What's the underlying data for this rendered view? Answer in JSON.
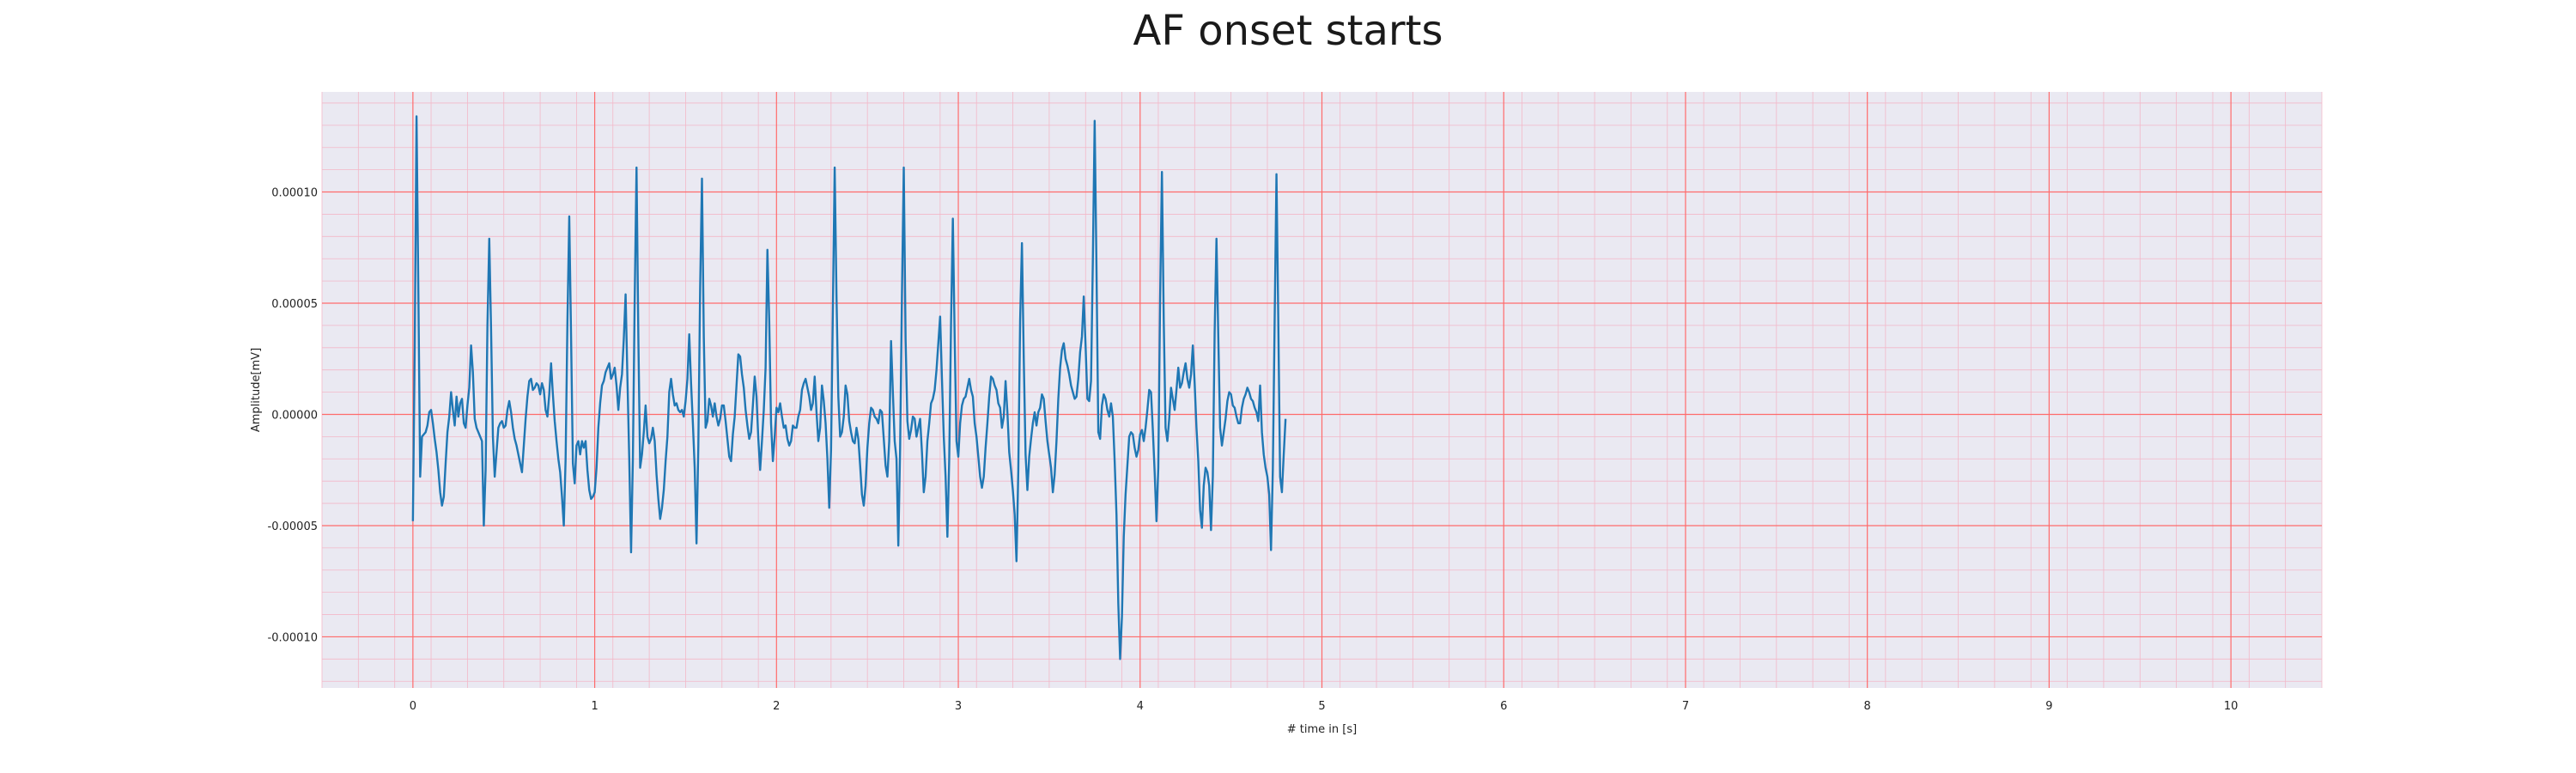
{
  "colors": {
    "background": "#ffffff",
    "plot_background": "#eae9f2",
    "major_grid": "#ff6b6b",
    "minor_grid": "#f3b8c8",
    "line": "#1f77b4",
    "text": "#222222"
  },
  "chart_data": {
    "type": "line",
    "title": "AF onset starts",
    "xlabel": "# time in [s]",
    "ylabel": "Amplitude[mV]",
    "xlim": [
      -0.5,
      10.5
    ],
    "ylim": [
      -0.000123,
      0.000145
    ],
    "x_ticks": [
      0,
      1,
      2,
      3,
      4,
      5,
      6,
      7,
      8,
      9,
      10
    ],
    "x_tick_labels": [
      "0",
      "1",
      "2",
      "3",
      "4",
      "5",
      "6",
      "7",
      "8",
      "9",
      "10"
    ],
    "y_ticks": [
      0.0001,
      5e-05,
      0.0,
      -5e-05,
      -0.0001
    ],
    "y_tick_labels": [
      "0.00010",
      "0.00005",
      "0.00000",
      "-0.00005",
      "-0.00010"
    ],
    "grid": true,
    "minor_grid": true,
    "series": [
      {
        "x_start": 0,
        "x_step": 0.01,
        "values": [
          -4.8e-05,
          3e-05,
          0.000134,
          5.5e-05,
          -2.8e-05,
          -1e-05,
          -9e-06,
          -8e-06,
          -5e-06,
          1e-06,
          2e-06,
          -4e-06,
          -1.1e-05,
          -1.7e-05,
          -2.5e-05,
          -3.5e-05,
          -4.1e-05,
          -3.7e-05,
          -2.2e-05,
          -8e-06,
          -1e-06,
          1e-05,
          2e-06,
          -5e-06,
          8e-06,
          -1e-06,
          5e-06,
          7e-06,
          -4e-06,
          -6e-06,
          4e-06,
          1.2e-05,
          3.1e-05,
          1.9e-05,
          -2e-06,
          -6e-06,
          -8e-06,
          -1e-05,
          -1.2e-05,
          -5e-05,
          -2.5e-05,
          4e-05,
          7.9e-05,
          3.8e-05,
          -1e-05,
          -2.8e-05,
          -1.7e-05,
          -6e-06,
          -4e-06,
          -3e-06,
          -6e-06,
          -5e-06,
          2e-06,
          6e-06,
          1e-06,
          -6e-06,
          -1.1e-05,
          -1.4e-05,
          -1.8e-05,
          -2.2e-05,
          -2.6e-05,
          -1.4e-05,
          -2e-06,
          8e-06,
          1.5e-05,
          1.6e-05,
          1.1e-05,
          1.2e-05,
          1.4e-05,
          1.3e-05,
          9e-06,
          1.4e-05,
          1.1e-05,
          2e-06,
          -1e-06,
          9e-06,
          2.3e-05,
          9e-06,
          -3e-06,
          -1.2e-05,
          -2e-05,
          -2.6e-05,
          -3.7e-05,
          -5e-05,
          -2e-05,
          4.2e-05,
          8.9e-05,
          3.5e-05,
          -2.2e-05,
          -3.1e-05,
          -1.4e-05,
          -1.2e-05,
          -1.8e-05,
          -1.2e-05,
          -1.5e-05,
          -1.2e-05,
          -2.5e-05,
          -3.4e-05,
          -3.8e-05,
          -3.7e-05,
          -3.5e-05,
          -2.4e-05,
          -6e-06,
          5e-06,
          1.3e-05,
          1.5e-05,
          1.9e-05,
          2.1e-05,
          2.3e-05,
          1.6e-05,
          1.8e-05,
          2.1e-05,
          1.3e-05,
          2e-06,
          1.2e-05,
          1.8e-05,
          3.4e-05,
          5.4e-05,
          1.6e-05,
          -2e-05,
          -6.2e-05,
          -2e-05,
          5.2e-05,
          0.000111,
          3.5e-05,
          -2.4e-05,
          -1.8e-05,
          -8e-06,
          4e-06,
          -1e-05,
          -1.3e-05,
          -1.1e-05,
          -6e-06,
          -1.2e-05,
          -2.7e-05,
          -3.8e-05,
          -4.7e-05,
          -4.2e-05,
          -3.4e-05,
          -2.1e-05,
          -1e-05,
          1e-05,
          1.6e-05,
          9e-06,
          4e-06,
          5e-06,
          2e-06,
          1e-06,
          2e-06,
          -1e-06,
          6e-06,
          1.6e-05,
          3.6e-05,
          1.4e-05,
          -4e-06,
          -2.4e-05,
          -5.8e-05,
          -1.4e-05,
          5.7e-05,
          0.000106,
          3.5e-05,
          -6e-06,
          -3e-06,
          7e-06,
          4e-06,
          -1e-06,
          5e-06,
          -1e-06,
          -5e-06,
          -2e-06,
          4e-06,
          4e-06,
          -3e-06,
          -1.1e-05,
          -1.9e-05,
          -2.1e-05,
          -9e-06,
          -1e-06,
          1.3e-05,
          2.7e-05,
          2.6e-05,
          1.8e-05,
          1.2e-05,
          2e-06,
          -5e-06,
          -1.1e-05,
          -8e-06,
          4e-06,
          1.7e-05,
          8e-06,
          -1.1e-05,
          -2.5e-05,
          -1.2e-05,
          2e-06,
          2.1e-05,
          7.4e-05,
          4.2e-05,
          -4e-06,
          -2.1e-05,
          -1e-05,
          3e-06,
          1e-06,
          5e-06,
          -1e-06,
          -6e-06,
          -5e-06,
          -1.1e-05,
          -1.4e-05,
          -1.2e-05,
          -5e-06,
          -6e-06,
          -6e-06,
          -1e-06,
          2e-06,
          1.1e-05,
          1.4e-05,
          1.6e-05,
          1.2e-05,
          8e-06,
          2e-06,
          5e-06,
          1.7e-05,
          1e-06,
          -1.2e-05,
          -6e-06,
          1.3e-05,
          6e-06,
          -4e-06,
          -2e-05,
          -4.2e-05,
          -1.6e-05,
          4.7e-05,
          0.000111,
          5.3e-05,
          8e-06,
          -1e-05,
          -8e-06,
          -1e-06,
          1.3e-05,
          9e-06,
          -3e-06,
          -8e-06,
          -1.2e-05,
          -1.3e-05,
          -6e-06,
          -1.1e-05,
          -2.3e-05,
          -3.6e-05,
          -4.1e-05,
          -3.2e-05,
          -1.5e-05,
          -4e-06,
          3e-06,
          2e-06,
          -1e-06,
          -2e-06,
          -4e-06,
          2e-06,
          1e-06,
          -1.1e-05,
          -2.3e-05,
          -2.8e-05,
          -1.2e-05,
          3.3e-05,
          1e-05,
          -1.2e-05,
          -2e-05,
          -5.9e-05,
          -1.5e-05,
          5.4e-05,
          0.000111,
          3.4e-05,
          -3e-06,
          -1.1e-05,
          -7e-06,
          -1e-06,
          -2e-06,
          -1e-05,
          -6e-06,
          -2e-06,
          -1.7e-05,
          -3.5e-05,
          -2.8e-05,
          -1.2e-05,
          -4e-06,
          5e-06,
          7e-06,
          1.1e-05,
          2e-05,
          3.2e-05,
          4.4e-05,
          1.6e-05,
          -1e-05,
          -2.8e-05,
          -5.5e-05,
          -2e-05,
          4.1e-05,
          8.8e-05,
          3.4e-05,
          -1.2e-05,
          -1.9e-05,
          -4e-06,
          4e-06,
          7e-06,
          8e-06,
          1.2e-05,
          1.6e-05,
          1.1e-05,
          8e-06,
          -4e-06,
          -1e-05,
          -1.9e-05,
          -2.8e-05,
          -3.3e-05,
          -2.8e-05,
          -1.5e-05,
          -4e-06,
          8e-06,
          1.7e-05,
          1.6e-05,
          1.3e-05,
          1.1e-05,
          5e-06,
          3e-06,
          -6e-06,
          -1e-06,
          1.5e-05,
          1e-06,
          -1.7e-05,
          -2.5e-05,
          -3.4e-05,
          -4.5e-05,
          -6.6e-05,
          -2.5e-05,
          4.2e-05,
          7.7e-05,
          2.5e-05,
          -1.8e-05,
          -3.4e-05,
          -1.9e-05,
          -1.1e-05,
          -4e-06,
          1e-06,
          -5e-06,
          1e-06,
          3e-06,
          9e-06,
          7e-06,
          -3e-06,
          -1.2e-05,
          -1.8e-05,
          -2.4e-05,
          -3.5e-05,
          -2.7e-05,
          -1.2e-05,
          7e-06,
          2.1e-05,
          2.9e-05,
          3.2e-05,
          2.5e-05,
          2.2e-05,
          1.8e-05,
          1.3e-05,
          1e-05,
          7e-06,
          8e-06,
          1.6e-05,
          2.8e-05,
          3.5e-05,
          5.3e-05,
          3.1e-05,
          7e-06,
          6e-06,
          1.5e-05,
          6.9e-05,
          0.000132,
          6.6e-05,
          -8e-06,
          -1.1e-05,
          4e-06,
          9e-06,
          7e-06,
          2e-06,
          -1e-06,
          5e-06,
          -1e-06,
          -2.1e-05,
          -4.5e-05,
          -8.5e-05,
          -0.00011,
          -9.1e-05,
          -5.5e-05,
          -3.6e-05,
          -2.3e-05,
          -1e-05,
          -8e-06,
          -9e-06,
          -1.5e-05,
          -1.9e-05,
          -1.6e-05,
          -9e-06,
          -7e-06,
          -1.2e-05,
          -6e-06,
          2e-06,
          1.1e-05,
          1e-05,
          -7e-06,
          -2.6e-05,
          -4.8e-05,
          -2.4e-05,
          5.2e-05,
          0.000109,
          4.2e-05,
          -6e-06,
          -1.2e-05,
          -2e-06,
          1.2e-05,
          7e-06,
          2e-06,
          1.1e-05,
          2.1e-05,
          1.2e-05,
          1.4e-05,
          1.9e-05,
          2.3e-05,
          1.6e-05,
          1.2e-05,
          1.8e-05,
          3.1e-05,
          1.4e-05,
          -6e-06,
          -2.1e-05,
          -4.3e-05,
          -5.1e-05,
          -3.2e-05,
          -2.4e-05,
          -2.6e-05,
          -3.2e-05,
          -5.2e-05,
          -2.8e-05,
          3.7e-05,
          7.9e-05,
          3.5e-05,
          -6e-06,
          -1.4e-05,
          -8e-06,
          -2e-06,
          6e-06,
          1e-05,
          9e-06,
          4e-06,
          3e-06,
          -1e-06,
          -4e-06,
          -4e-06,
          3e-06,
          7e-06,
          9e-06,
          1.2e-05,
          1e-05,
          7e-06,
          6e-06,
          3e-06,
          1e-06,
          -3e-06,
          1.3e-05,
          -8e-06,
          -1.8e-05,
          -2.4e-05,
          -2.8e-05,
          -3.6e-05,
          -6.1e-05,
          -2.5e-05,
          4.2e-05,
          0.000108,
          4.2e-05,
          -2.8e-05,
          -3.5e-05,
          -1.8e-05,
          -2e-06
        ]
      }
    ]
  }
}
